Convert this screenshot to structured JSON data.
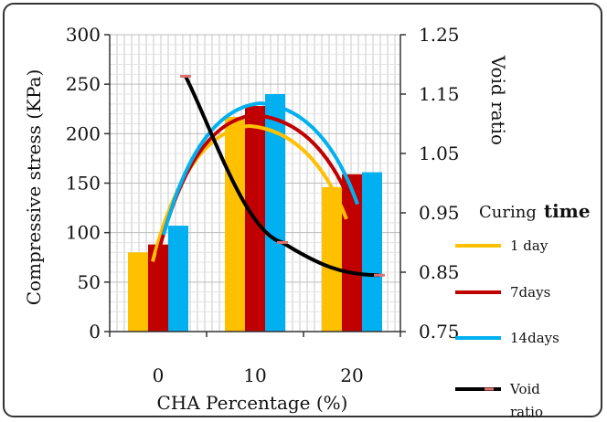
{
  "chart_data": {
    "type": "bar",
    "categories": [
      "0",
      "10",
      "20"
    ],
    "xlabel": "CHA Percentage (%)",
    "ylabel": "Compressive stress (KPa)",
    "y2label": "Void ratio",
    "ylim": [
      0,
      300
    ],
    "yticks": [
      "0",
      "50",
      "100",
      "150",
      "200",
      "250",
      "300"
    ],
    "y2lim": [
      0.75,
      1.25
    ],
    "y2ticks": [
      "0.75",
      "0.85",
      "0.95",
      "1.05",
      "1.15",
      "1.25"
    ],
    "grid": true,
    "legend_title": "Curing",
    "legend_title_bold": "time",
    "legend_position": "right",
    "series": [
      {
        "name": "1 day",
        "values": [
          80,
          217,
          146
        ],
        "color": "#ffc000"
      },
      {
        "name": "7days",
        "values": [
          88,
          228,
          159
        ],
        "color": "#c00000"
      },
      {
        "name": "14days",
        "values": [
          107,
          240,
          161
        ],
        "color": "#00b0f0"
      }
    ],
    "void_ratio": {
      "name_line1": "Void",
      "name_line2": "ratio",
      "values": [
        1.18,
        0.9,
        0.845
      ],
      "color": "#000000",
      "marker_color": "#e07070"
    }
  }
}
